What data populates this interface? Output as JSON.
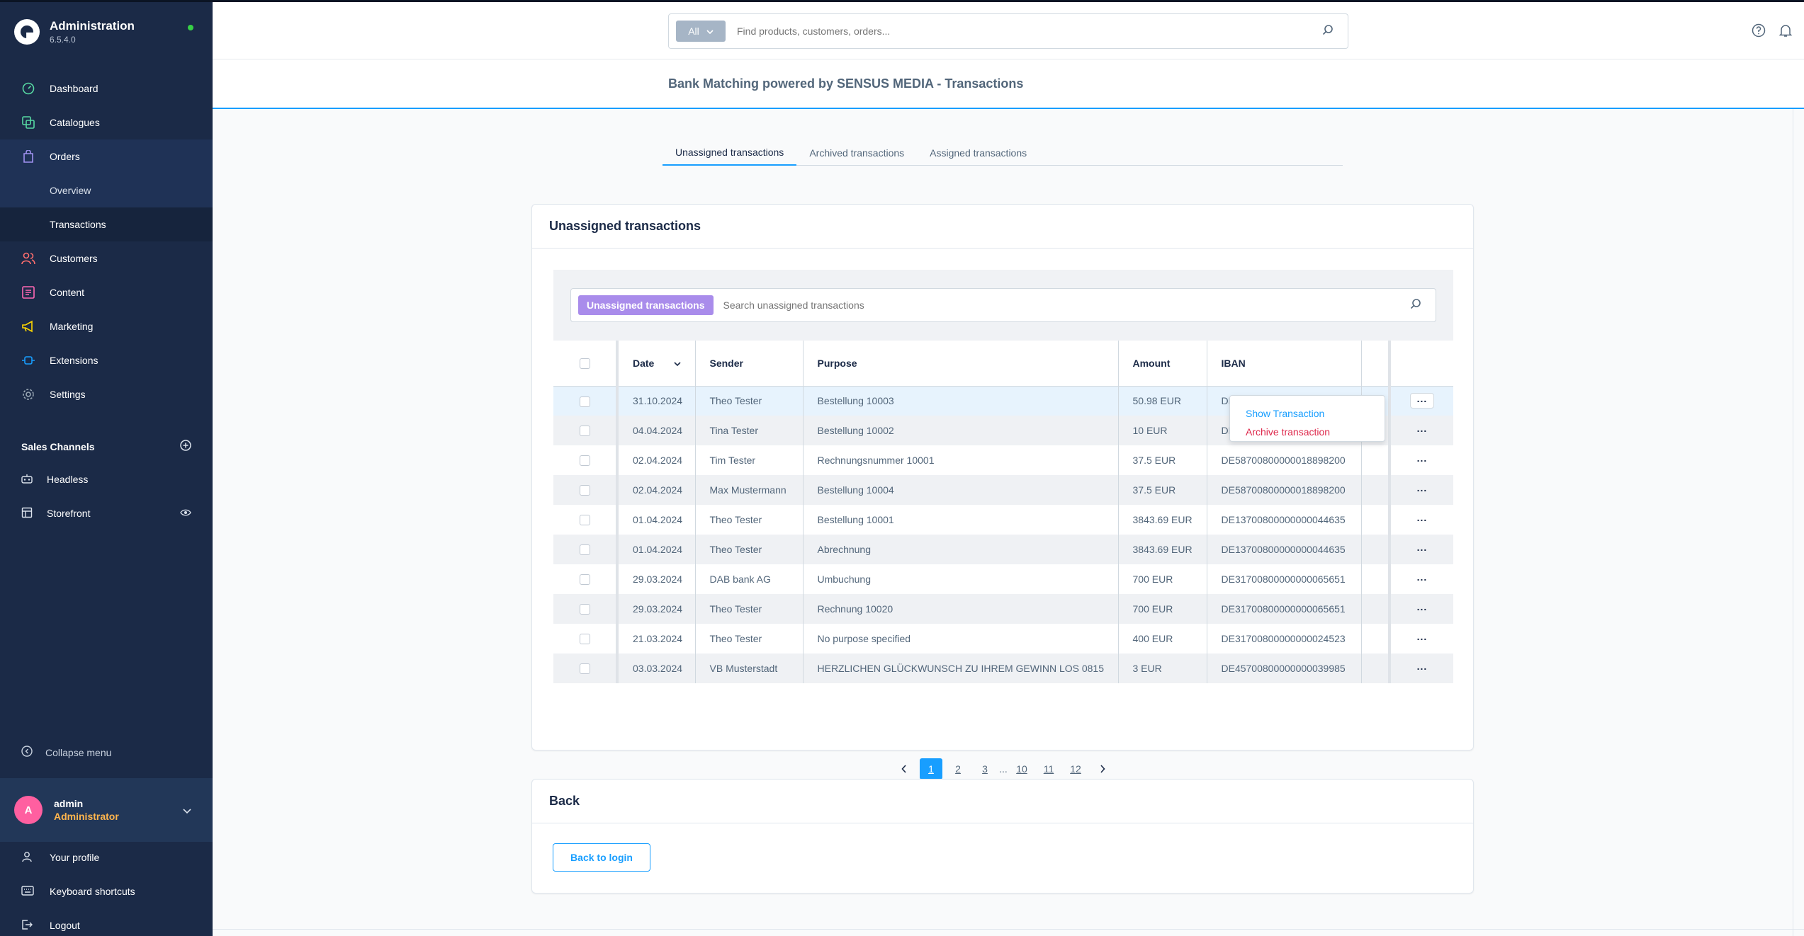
{
  "app": {
    "title": "Administration",
    "version": "6.5.4.0"
  },
  "nav": [
    {
      "label": "Dashboard",
      "icon": "dashboard-icon",
      "color": "#57d9a3"
    },
    {
      "label": "Catalogues",
      "icon": "catalogue-icon",
      "color": "#57d9a3"
    },
    {
      "label": "Orders",
      "icon": "orders-icon",
      "color": "#a092f0"
    },
    {
      "label": "Customers",
      "icon": "customers-icon",
      "color": "#ff6e6e"
    },
    {
      "label": "Content",
      "icon": "content-icon",
      "color": "#ff68b4"
    },
    {
      "label": "Marketing",
      "icon": "marketing-icon",
      "color": "#ffd700"
    },
    {
      "label": "Extensions",
      "icon": "extensions-icon",
      "color": "#189eff"
    },
    {
      "label": "Settings",
      "icon": "settings-icon",
      "color": "#9aa8b5"
    }
  ],
  "orders_sub": {
    "overview": "Overview",
    "transactions": "Transactions"
  },
  "sales_channels": {
    "heading": "Sales Channels",
    "items": [
      "Headless",
      "Storefront"
    ]
  },
  "collapse_label": "Collapse menu",
  "user": {
    "initial": "A",
    "name": "admin",
    "role": "Administrator"
  },
  "footer_nav": [
    "Your profile",
    "Keyboard shortcuts",
    "Logout"
  ],
  "search": {
    "filter": "All",
    "placeholder": "Find products, customers, orders..."
  },
  "page_title": "Bank Matching powered by SENSUS MEDIA - Transactions",
  "tabs": [
    "Unassigned transactions",
    "Archived transactions",
    "Assigned transactions"
  ],
  "card_title": "Unassigned transactions",
  "grid": {
    "tag": "Unassigned transactions",
    "placeholder": "Search unassigned transactions",
    "columns": {
      "date": "Date",
      "sender": "Sender",
      "purpose": "Purpose",
      "amount": "Amount",
      "iban": "IBAN"
    },
    "rows": [
      {
        "date": "31.10.2024",
        "sender": "Theo Tester",
        "purpose": "Bestellung 10003",
        "amount": "50.98 EUR",
        "iban": "DE"
      },
      {
        "date": "04.04.2024",
        "sender": "Tina Tester",
        "purpose": "Bestellung 10002",
        "amount": "10 EUR",
        "iban": "DE"
      },
      {
        "date": "02.04.2024",
        "sender": "Tim Tester",
        "purpose": "Rechnungsnummer 10001",
        "amount": "37.5 EUR",
        "iban": "DE58700800000018898200"
      },
      {
        "date": "02.04.2024",
        "sender": "Max Mustermann",
        "purpose": "Bestellung 10004",
        "amount": "37.5 EUR",
        "iban": "DE58700800000018898200"
      },
      {
        "date": "01.04.2024",
        "sender": "Theo Tester",
        "purpose": "Bestellung 10001",
        "amount": "3843.69 EUR",
        "iban": "DE13700800000000044635"
      },
      {
        "date": "01.04.2024",
        "sender": "Theo Tester",
        "purpose": "Abrechnung",
        "amount": "3843.69 EUR",
        "iban": "DE13700800000000044635"
      },
      {
        "date": "29.03.2024",
        "sender": "DAB bank AG",
        "purpose": "Umbuchung",
        "amount": "700 EUR",
        "iban": "DE31700800000000065651"
      },
      {
        "date": "29.03.2024",
        "sender": "Theo Tester",
        "purpose": "Rechnung 10020",
        "amount": "700 EUR",
        "iban": "DE31700800000000065651"
      },
      {
        "date": "21.03.2024",
        "sender": "Theo Tester",
        "purpose": "No purpose specified",
        "amount": "400 EUR",
        "iban": "DE31700800000000024523"
      },
      {
        "date": "03.03.2024",
        "sender": "VB Musterstadt",
        "purpose": "HERZLICHEN GLÜCKWUNSCH ZU IHREM GEWINN LOS 0815",
        "amount": "3 EUR",
        "iban": "DE45700800000000039985"
      }
    ],
    "row_action": "..."
  },
  "context_menu": {
    "show": "Show Transaction",
    "archive": "Archive transaction"
  },
  "pagination": {
    "pages": [
      "1",
      "2",
      "3",
      "...",
      "10",
      "11",
      "12"
    ],
    "current": "1",
    "prev": "‹",
    "next": "›"
  },
  "back_card": {
    "title": "Back",
    "button": "Back to login"
  },
  "colors": {
    "accent": "#189eff",
    "sidebar": "#1b2a47",
    "tag": "#a98ceb",
    "danger": "#de294c",
    "online": "#37d046"
  }
}
